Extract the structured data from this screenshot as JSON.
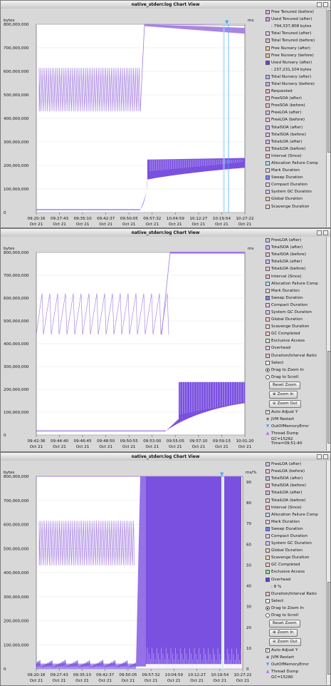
{
  "windows": [
    {
      "title": "native_stderr.log Chart View",
      "yunit": "bytes",
      "rightunit": "ms",
      "yticks": [
        "800,000,000",
        "700,000,000",
        "600,000,000",
        "500,000,000",
        "400,000,000",
        "300,000,000",
        "200,000,000",
        "100,000,000",
        "0"
      ],
      "xticks": [
        [
          "09:20:16",
          "Oct 21"
        ],
        [
          "09:27:43",
          "Oct 21"
        ],
        [
          "09:35:10",
          "Oct 21"
        ],
        [
          "09:42:37",
          "Oct 21"
        ],
        [
          "09:50:05",
          "Oct 21"
        ],
        [
          "09:57:32",
          "Oct 21"
        ],
        [
          "10:04:59",
          "Oct 21"
        ],
        [
          "10:12:27",
          "Oct 21"
        ],
        [
          "10:19:54",
          "Oct 21"
        ],
        [
          "10:27:22",
          "Oct 21"
        ]
      ],
      "legend": [
        {
          "label": "Free Tenured (before)",
          "color": "#d9b3e6",
          "checked": false
        },
        {
          "label": "Used Tenured (after)",
          "color": "#c9a0ea",
          "checked": true
        },
        {
          "label": ": 794,337,808 bytes",
          "value": true
        },
        {
          "label": "Total Tenured (after)",
          "color": "#e0c8f0",
          "checked": false
        },
        {
          "label": "Total Tenured (before)",
          "color": "#f2b3d1",
          "checked": false
        },
        {
          "label": "Free Nursery (after)",
          "color": "#f5c6a6",
          "checked": false
        },
        {
          "label": "Free Nursery (before)",
          "color": "#e6c3a6",
          "checked": false
        },
        {
          "label": "Used Nursery (after)",
          "color": "#6a3fd8",
          "checked": true
        },
        {
          "label": ": 237,231,104 bytes",
          "value": true
        },
        {
          "label": "Total Nursery (after)",
          "color": "#b0b8ff",
          "checked": false
        },
        {
          "label": "Total Nursery (before)",
          "color": "#c8b0ff",
          "checked": false
        },
        {
          "label": "Requested",
          "color": "#f2b3c6",
          "checked": false
        },
        {
          "label": "FreeSOA (after)",
          "color": "#f5c0e0",
          "checked": false
        },
        {
          "label": "FreeSOA (before)",
          "color": "#f0c0cc",
          "checked": false
        },
        {
          "label": "FreeLOA (after)",
          "color": "#c0c8ff",
          "checked": false
        },
        {
          "label": "FreeLOA (before)",
          "color": "#f5c6d6",
          "checked": false
        },
        {
          "label": "TotalSOA (after)",
          "color": "#c8b8f8",
          "checked": false
        },
        {
          "label": "TotalSOA (before)",
          "color": "#f0b8d8",
          "checked": false
        },
        {
          "label": "TotalLOA (after)",
          "color": "#d8b8ff",
          "checked": false
        },
        {
          "label": "TotalLOA (before)",
          "color": "#f8c0d8",
          "checked": false
        },
        {
          "label": "Interval (Since)",
          "color": "#f5b8c8",
          "checked": false
        },
        {
          "label": "Allocation Failure Comp",
          "color": "#b8e0ff",
          "checked": false
        },
        {
          "label": "Mark Duration",
          "color": "#f8d0e0",
          "checked": false
        },
        {
          "label": "Sweep Duration",
          "color": "#8080ff",
          "checked": false
        },
        {
          "label": "Compact Duration",
          "color": "#f0c8e8",
          "checked": false
        },
        {
          "label": "System GC Duration",
          "color": "#d8c8ff",
          "checked": false
        },
        {
          "label": "Global Duration",
          "color": "#f8c8b8",
          "checked": false
        },
        {
          "label": "Scavenge Duration",
          "color": "#f0d8c0",
          "checked": false
        }
      ],
      "cursor": "",
      "time": ""
    },
    {
      "title": "native_stderr.log Chart View",
      "yunit": "bytes",
      "rightunit": "ms",
      "yticks": [
        "800,000,000",
        "700,000,000",
        "600,000,000",
        "500,000,000",
        "400,000,000",
        "300,000,000",
        "200,000,000",
        "100,000,000",
        "0"
      ],
      "xticks": [
        [
          "09:42:36",
          "Oct 21"
        ],
        [
          "09:44:40",
          "Oct 21"
        ],
        [
          "09:46:45",
          "Oct 21"
        ],
        [
          "09:48:50",
          "Oct 21"
        ],
        [
          "09:50:55",
          "Oct 21"
        ],
        [
          "09:53:00",
          "Oct 21"
        ],
        [
          "09:55:05",
          "Oct 21"
        ],
        [
          "09:57:10",
          "Oct 21"
        ],
        [
          "09:59:15",
          "Oct 21"
        ],
        [
          "10:01:20",
          "Oct 21"
        ]
      ],
      "legend": [
        {
          "label": "FreeLOA (after)",
          "color": "#c0c8ff",
          "checked": false
        },
        {
          "label": "TotalSOA (after)",
          "color": "#c8b8f8",
          "checked": false
        },
        {
          "label": "TotalSOA (before)",
          "color": "#f0b8d8",
          "checked": false
        },
        {
          "label": "TotalLOA (after)",
          "color": "#d8b8ff",
          "checked": false
        },
        {
          "label": "TotalLOA (before)",
          "color": "#f8c0d8",
          "checked": false
        },
        {
          "label": "Interval (Since)",
          "color": "#f5b8c8",
          "checked": false
        },
        {
          "label": "Allocation Failure Comp",
          "color": "#b8e0ff",
          "checked": false
        },
        {
          "label": "Mark Duration",
          "color": "#f8d0e0",
          "checked": false
        },
        {
          "label": "Sweep Duration",
          "color": "#8080ff",
          "checked": false
        },
        {
          "label": "Compact Duration",
          "color": "#f0c8e8",
          "checked": false
        },
        {
          "label": "System GC Duration",
          "color": "#d8c8ff",
          "checked": false
        },
        {
          "label": "Global Duration",
          "color": "#f8c8b8",
          "checked": false
        },
        {
          "label": "Scavenge Duration",
          "color": "#f0d8c0",
          "checked": false
        },
        {
          "label": "GC Completed",
          "color": "#f8c8c8",
          "checked": false
        },
        {
          "label": "Exclusive Access",
          "color": "#c8f0c8",
          "checked": false
        },
        {
          "label": "Overhead",
          "color": "#f8c8e8",
          "checked": false
        },
        {
          "label": "Duration/Interval Ratio",
          "color": "#f0c0d0",
          "checked": false
        }
      ],
      "cursor": "GC=15262",
      "time": "Time=09:51:40"
    },
    {
      "title": "native_stderr.log Chart View",
      "yunit": "bytes",
      "rightunit": "ms/%",
      "yticks": [
        "800,000,000",
        "700,000,000",
        "600,000,000",
        "500,000,000",
        "400,000,000",
        "300,000,000",
        "200,000,000",
        "100,000,000",
        "0"
      ],
      "rticks": [
        "90",
        "80",
        "70",
        "60",
        "50",
        "40",
        "30",
        "20",
        "10",
        "0"
      ],
      "xticks": [
        [
          "09:20:16",
          "Oct 21"
        ],
        [
          "09:27:43",
          "Oct 21"
        ],
        [
          "09:35:10",
          "Oct 21"
        ],
        [
          "09:42:37",
          "Oct 21"
        ],
        [
          "09:50:05",
          "Oct 21"
        ],
        [
          "09:57:32",
          "Oct 21"
        ],
        [
          "10:04:59",
          "Oct 21"
        ],
        [
          "10:12:27",
          "Oct 21"
        ],
        [
          "10:19:54",
          "Oct 21"
        ],
        [
          "10:27:22",
          "Oct 21"
        ]
      ],
      "legend": [
        {
          "label": "FreeLOA (after)",
          "color": "#c0c8ff",
          "checked": false
        },
        {
          "label": "FreeLOA (before)",
          "color": "#f5c6d6",
          "checked": false
        },
        {
          "label": "TotalSOA (after)",
          "color": "#c8b8f8",
          "checked": false
        },
        {
          "label": "TotalSOA (before)",
          "color": "#f0b8d8",
          "checked": false
        },
        {
          "label": "TotalLOA (after)",
          "color": "#d8b8ff",
          "checked": false
        },
        {
          "label": "TotalLOA (before)",
          "color": "#f8c0d8",
          "checked": false
        },
        {
          "label": "Interval (Since)",
          "color": "#f5b8c8",
          "checked": false
        },
        {
          "label": "Allocation Failure Comp",
          "color": "#b8e0ff",
          "checked": false
        },
        {
          "label": "Mark Duration",
          "color": "#f8d0e0",
          "checked": false
        },
        {
          "label": "Sweep Duration",
          "color": "#8080ff",
          "checked": false
        },
        {
          "label": "Compact Duration",
          "color": "#f0c8e8",
          "checked": false
        },
        {
          "label": "System GC Duration",
          "color": "#d8c8ff",
          "checked": false
        },
        {
          "label": "Global Duration",
          "color": "#f8c8b8",
          "checked": false
        },
        {
          "label": "Scavenge Duration",
          "color": "#f0d8c0",
          "checked": false
        },
        {
          "label": "GC Completed",
          "color": "#f8c8c8",
          "checked": false
        },
        {
          "label": "Exclusive Access",
          "color": "#8ee08e",
          "checked": false
        },
        {
          "label": "Overhead",
          "color": "#6a3fd8",
          "checked": true
        },
        {
          "label": ": 8 %",
          "value": true
        },
        {
          "label": "Duration/Interval Ratio",
          "color": "#f0c0d0",
          "checked": false
        }
      ],
      "cursor": "GC=15280",
      "time": ""
    }
  ],
  "controls": {
    "select": "Select",
    "drag_zoom": "Drag to Zoom In",
    "drag_scroll": "Drag to Scroll",
    "reset_zoom": "Reset Zoom",
    "zoom_in": "Zoom In",
    "zoom_out": "Zoom Out",
    "auto_adjust": "Auto Adjust Y",
    "jvm_restart": "JVM Restart",
    "oom": "OutOfMemoryError",
    "thread_dump": "Thread Dump"
  },
  "colors": {
    "tenured": "#a078e0",
    "nursery": "#7a50e0",
    "marker": "#9ad8ff",
    "oom": "#48a8ff",
    "thread_dump": "#b070ff"
  }
}
